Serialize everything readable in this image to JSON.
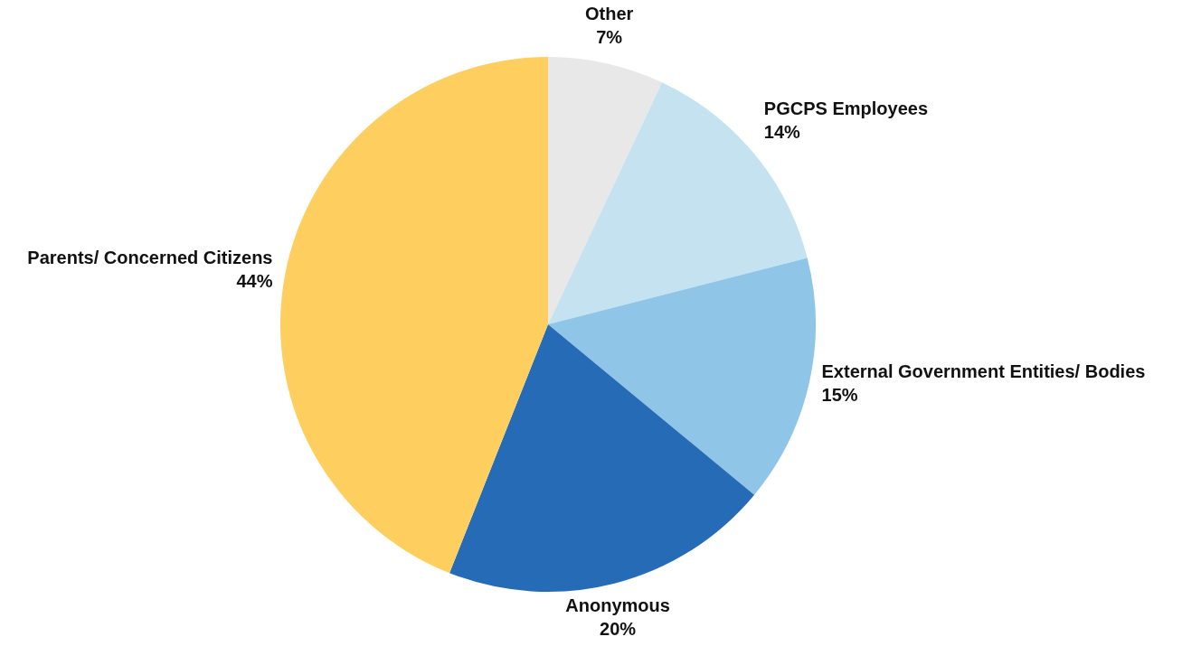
{
  "chart_data": {
    "type": "pie",
    "categories": [
      "Other",
      "PGCPS Employees",
      "External Government Entities/ Bodies",
      "Anonymous",
      "Parents/ Concerned Citizens"
    ],
    "values": [
      7,
      14,
      15,
      20,
      44
    ],
    "value_labels": [
      "7%",
      "14%",
      "15%",
      "20%",
      "44%"
    ],
    "colors": [
      "#e8e8e8",
      "#c5e2f1",
      "#8fc6e8",
      "#266bb5",
      "#fecf5f"
    ],
    "legend": false
  }
}
